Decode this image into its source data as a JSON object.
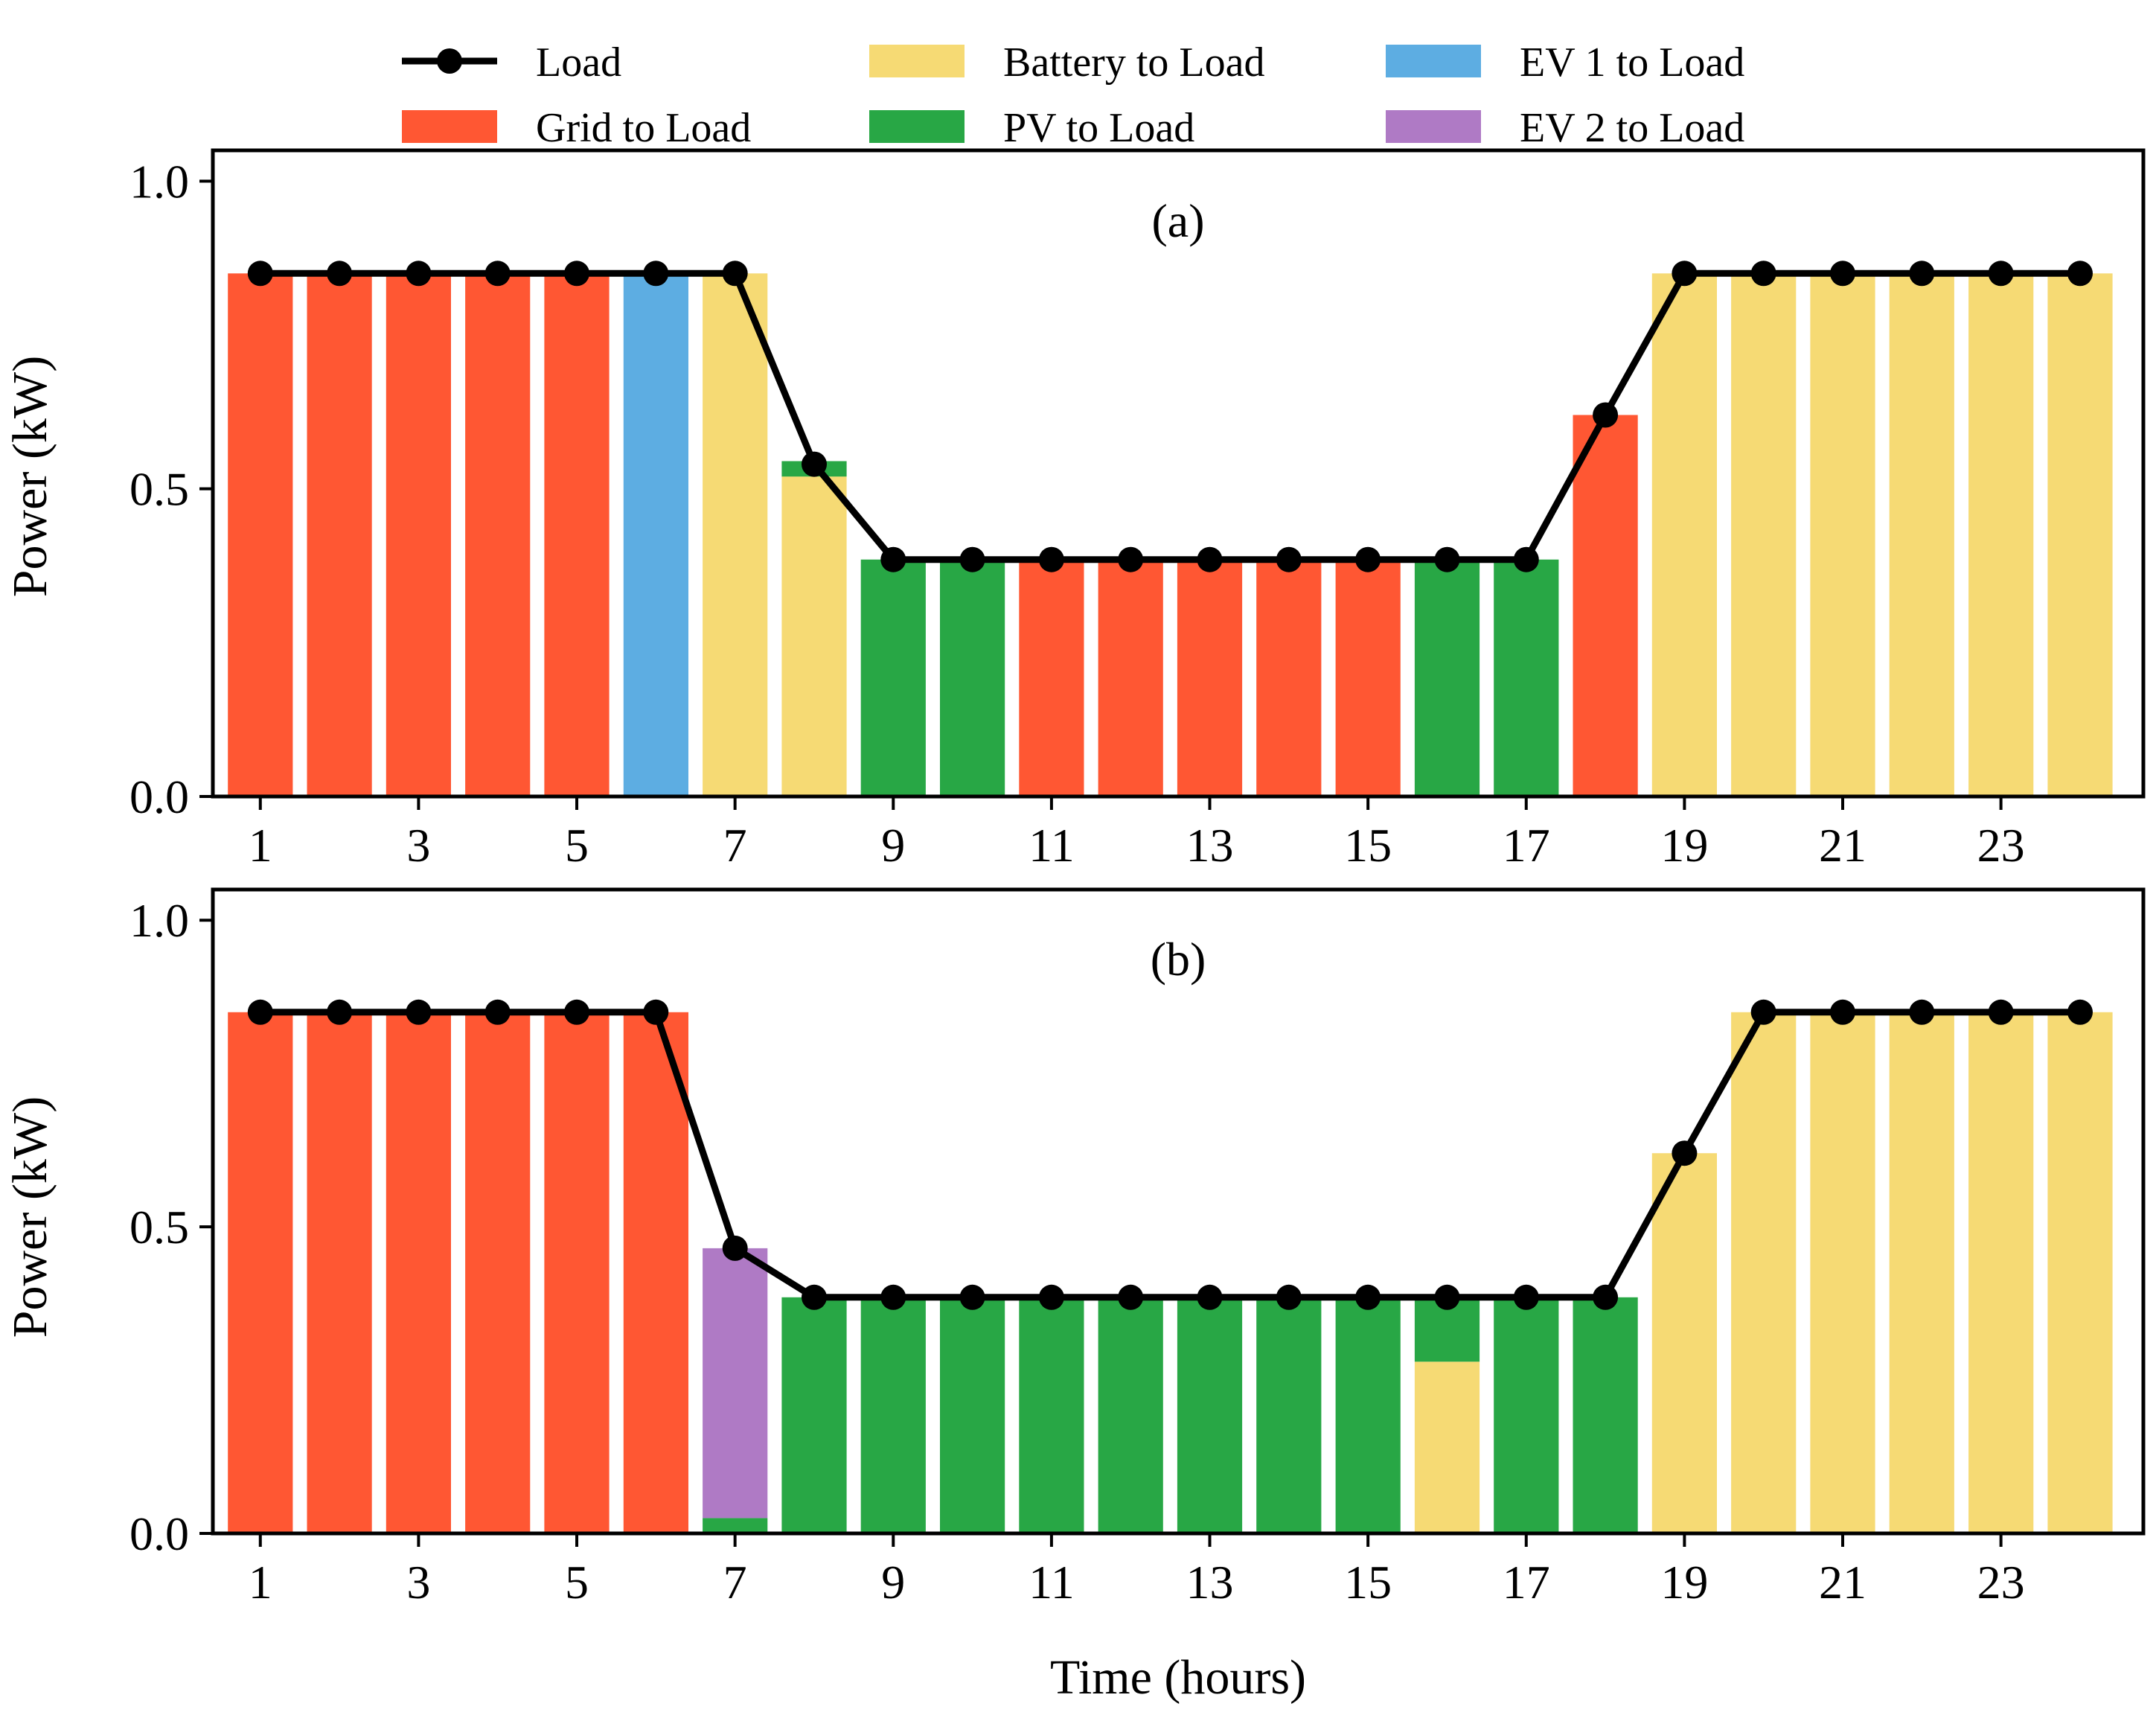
{
  "chart_data": {
    "type": "bar",
    "stacked": true,
    "x": [
      1,
      2,
      3,
      4,
      5,
      6,
      7,
      8,
      9,
      10,
      11,
      12,
      13,
      14,
      15,
      16,
      17,
      18,
      19,
      20,
      21,
      22,
      23,
      24
    ],
    "xticks": [
      1,
      3,
      5,
      7,
      9,
      11,
      13,
      15,
      17,
      19,
      21,
      23
    ],
    "xlabel": "Time (hours)",
    "ylabel": "Power (kW)",
    "ylim": [
      0,
      1.05
    ],
    "yticks": [
      "0.0",
      "0.5",
      "1.0"
    ],
    "legend": [
      {
        "key": "load",
        "label": "Load",
        "kind": "line",
        "color": "#000000"
      },
      {
        "key": "grid",
        "label": "Grid to Load",
        "kind": "bar",
        "color": "#FF5733"
      },
      {
        "key": "battery",
        "label": "Battery to Load",
        "kind": "bar",
        "color": "#F6DA74"
      },
      {
        "key": "pv",
        "label": "PV to Load",
        "kind": "bar",
        "color": "#28A745"
      },
      {
        "key": "ev1",
        "label": "EV 1 to Load",
        "kind": "bar",
        "color": "#5DADE2"
      },
      {
        "key": "ev2",
        "label": "EV 2 to Load",
        "kind": "bar",
        "color": "#AF7AC5"
      }
    ],
    "panels": [
      {
        "label": "(a)",
        "load": [
          0.85,
          0.85,
          0.85,
          0.85,
          0.85,
          0.85,
          0.85,
          0.54,
          0.385,
          0.385,
          0.385,
          0.385,
          0.385,
          0.385,
          0.385,
          0.385,
          0.385,
          0.62,
          0.85,
          0.85,
          0.85,
          0.85,
          0.85,
          0.85
        ],
        "series": [
          {
            "key": "grid",
            "name": "Grid to Load",
            "values": [
              0.85,
              0.85,
              0.85,
              0.85,
              0.85,
              0,
              0,
              0,
              0,
              0,
              0.385,
              0.385,
              0.385,
              0.385,
              0.385,
              0,
              0,
              0.62,
              0,
              0,
              0,
              0,
              0,
              0
            ]
          },
          {
            "key": "battery",
            "name": "Battery to Load",
            "values": [
              0,
              0,
              0,
              0,
              0,
              0,
              0.85,
              0.52,
              0,
              0,
              0,
              0,
              0,
              0,
              0,
              0,
              0,
              0,
              0.85,
              0.85,
              0.85,
              0.85,
              0.85,
              0.85
            ]
          },
          {
            "key": "pv",
            "name": "PV to Load",
            "values": [
              0,
              0,
              0,
              0,
              0,
              0,
              0,
              0.025,
              0.385,
              0.385,
              0,
              0,
              0,
              0,
              0,
              0.385,
              0.385,
              0,
              0,
              0,
              0,
              0,
              0,
              0
            ]
          },
          {
            "key": "ev1",
            "name": "EV 1 to Load",
            "values": [
              0,
              0,
              0,
              0,
              0,
              0.85,
              0,
              0,
              0,
              0,
              0,
              0,
              0,
              0,
              0,
              0,
              0,
              0,
              0,
              0,
              0,
              0,
              0,
              0
            ]
          },
          {
            "key": "ev2",
            "name": "EV 2 to Load",
            "values": [
              0,
              0,
              0,
              0,
              0,
              0,
              0,
              0,
              0,
              0,
              0,
              0,
              0,
              0,
              0,
              0,
              0,
              0,
              0,
              0,
              0,
              0,
              0,
              0
            ]
          }
        ]
      },
      {
        "label": "(b)",
        "load": [
          0.85,
          0.85,
          0.85,
          0.85,
          0.85,
          0.85,
          0.465,
          0.385,
          0.385,
          0.385,
          0.385,
          0.385,
          0.385,
          0.385,
          0.385,
          0.385,
          0.385,
          0.385,
          0.62,
          0.85,
          0.85,
          0.85,
          0.85,
          0.85
        ],
        "series": [
          {
            "key": "grid",
            "name": "Grid to Load",
            "values": [
              0.85,
              0.85,
              0.85,
              0.85,
              0.85,
              0.85,
              0,
              0,
              0,
              0,
              0,
              0,
              0,
              0,
              0,
              0,
              0,
              0,
              0,
              0,
              0,
              0,
              0,
              0
            ]
          },
          {
            "key": "battery",
            "name": "Battery to Load",
            "values": [
              0,
              0,
              0,
              0,
              0,
              0,
              0,
              0,
              0,
              0,
              0,
              0,
              0,
              0,
              0,
              0.28,
              0,
              0,
              0.62,
              0.85,
              0.85,
              0.85,
              0.85,
              0.85
            ]
          },
          {
            "key": "pv",
            "name": "PV to Load",
            "values": [
              0,
              0,
              0,
              0,
              0,
              0,
              0.025,
              0.385,
              0.385,
              0.385,
              0.385,
              0.385,
              0.385,
              0.385,
              0.385,
              0.105,
              0.385,
              0.385,
              0,
              0,
              0,
              0,
              0,
              0
            ]
          },
          {
            "key": "ev1",
            "name": "EV 1 to Load",
            "values": [
              0,
              0,
              0,
              0,
              0,
              0,
              0,
              0,
              0,
              0,
              0,
              0,
              0,
              0,
              0,
              0,
              0,
              0,
              0,
              0,
              0,
              0,
              0,
              0
            ]
          },
          {
            "key": "ev2",
            "name": "EV 2 to Load",
            "values": [
              0,
              0,
              0,
              0,
              0,
              0,
              0.44,
              0,
              0,
              0,
              0,
              0,
              0,
              0,
              0,
              0,
              0,
              0,
              0,
              0,
              0,
              0,
              0,
              0
            ]
          }
        ]
      }
    ]
  }
}
